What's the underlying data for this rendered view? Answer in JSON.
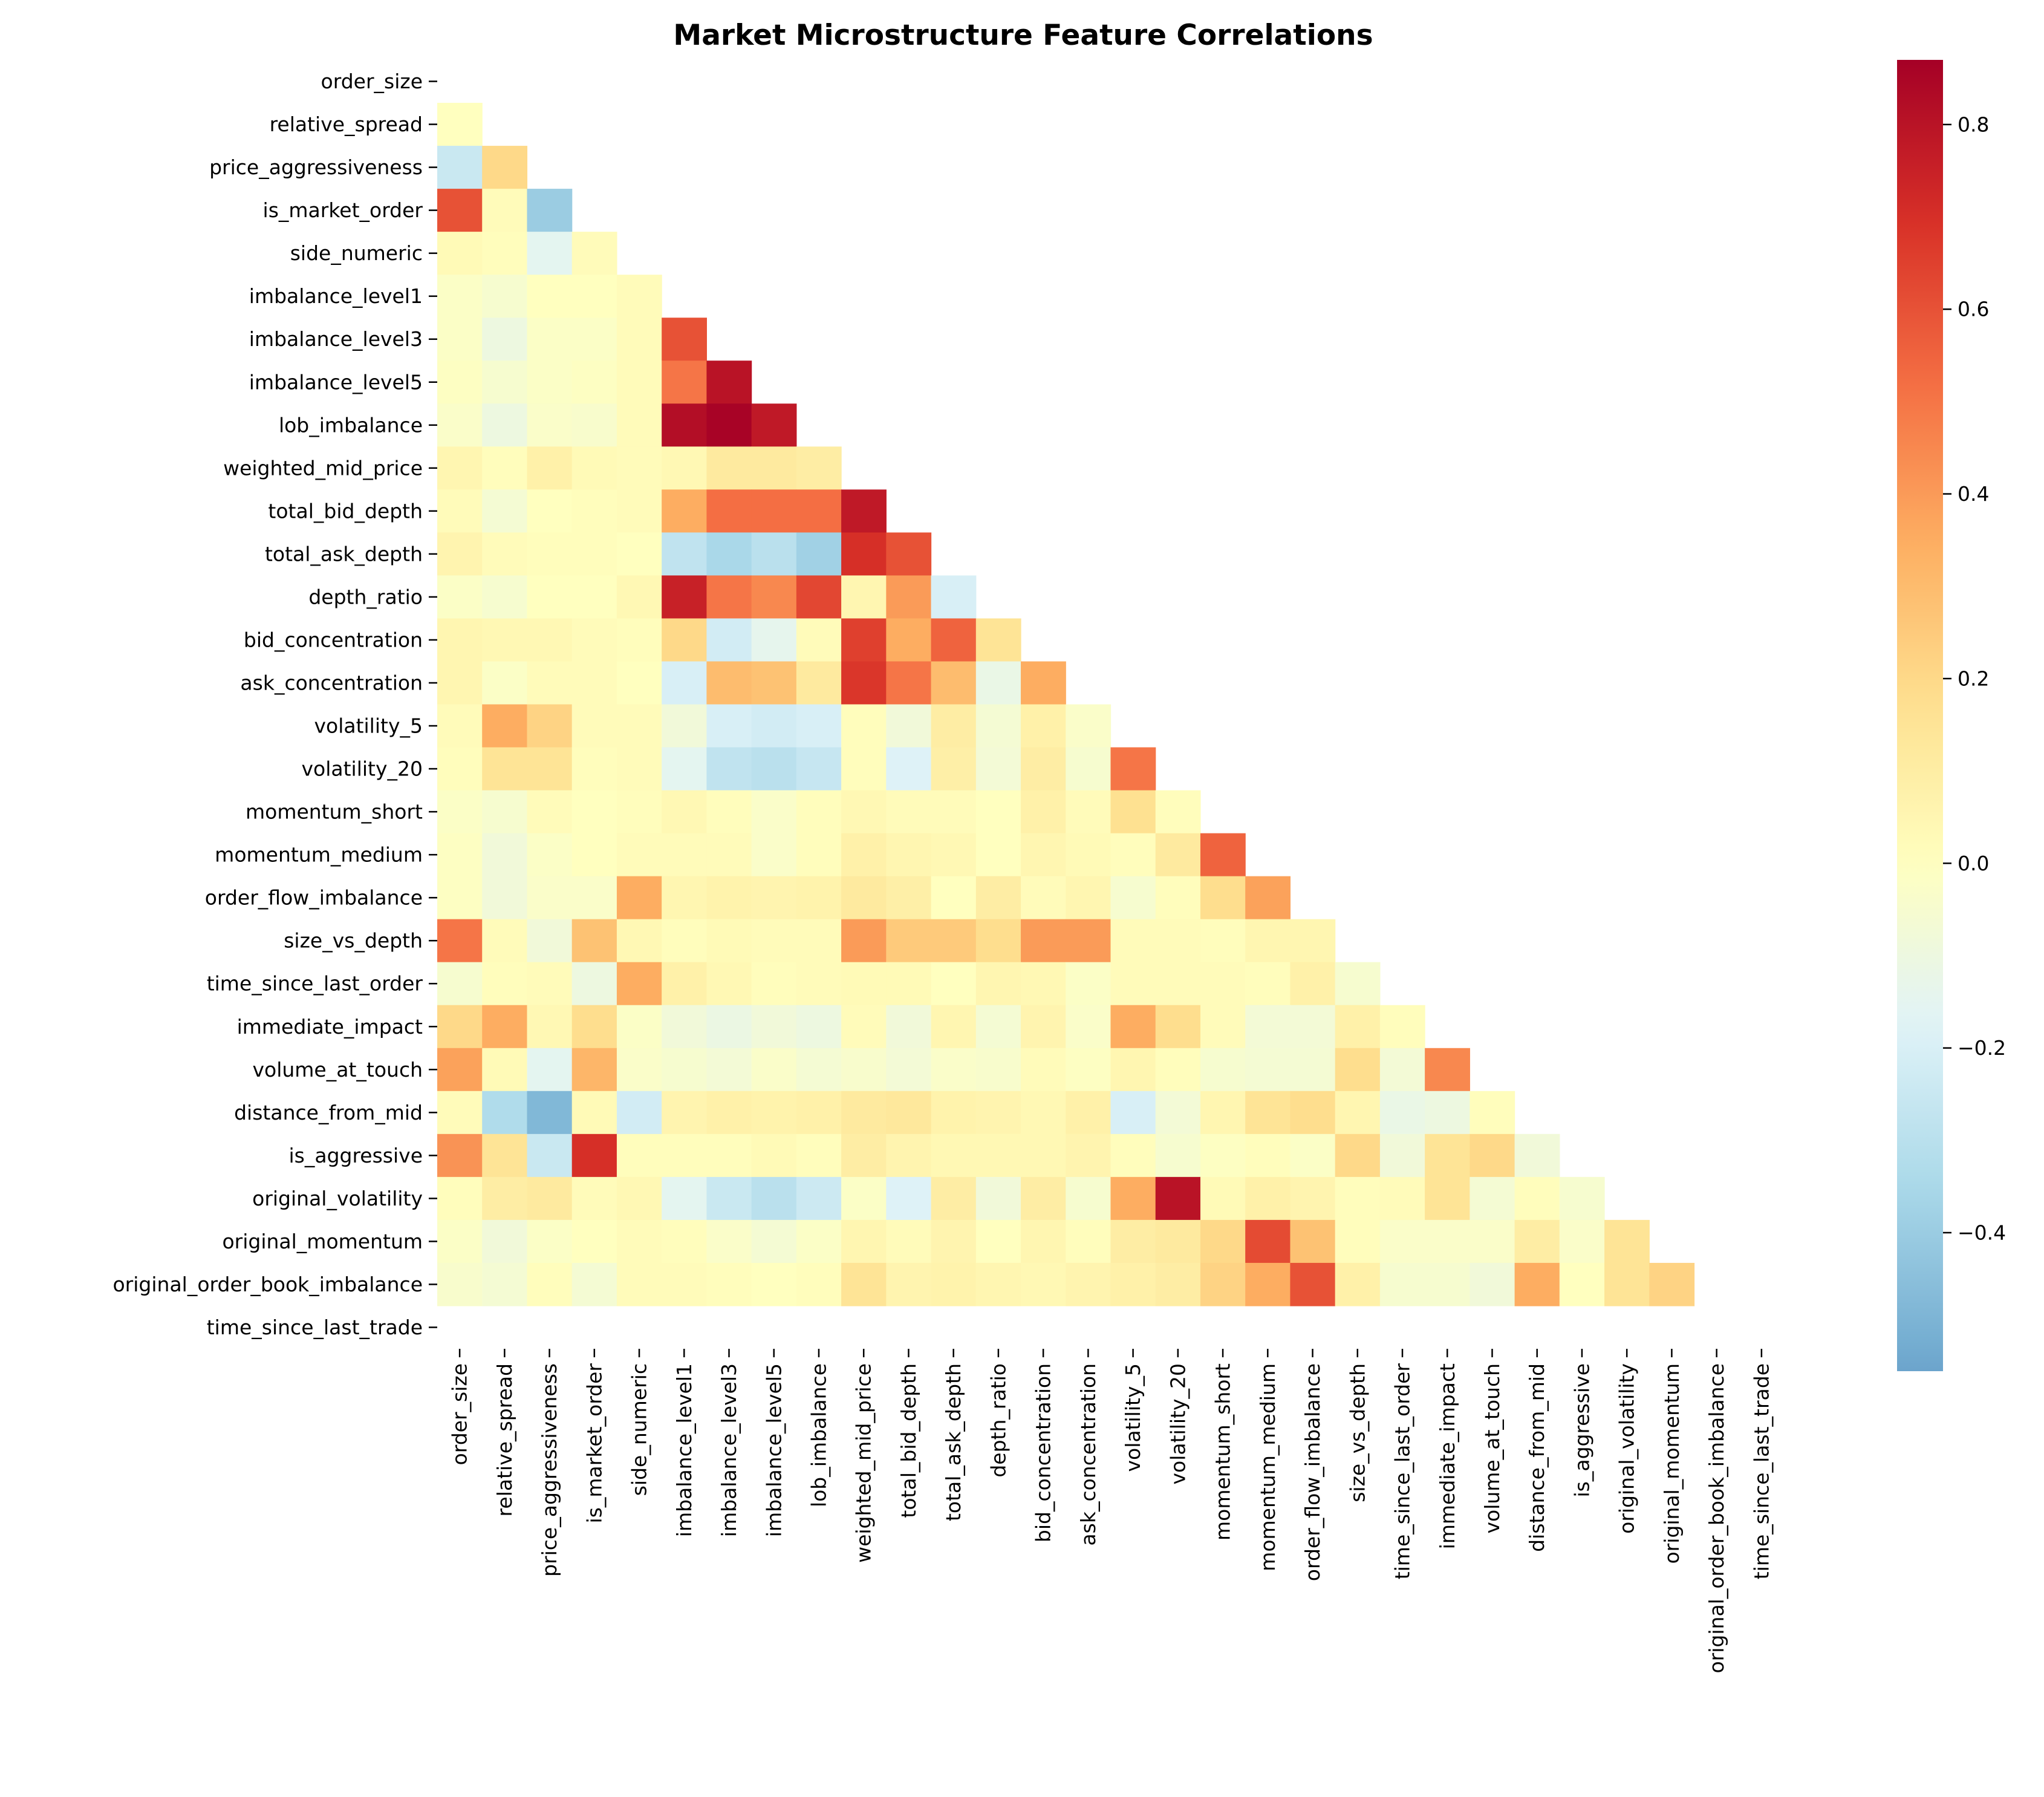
{
  "chart_data": {
    "type": "heatmap",
    "title": "Market Microstructure Feature Correlations",
    "mask": "upper-triangle-including-diagonal",
    "colormap": "RdYlBu_r",
    "features": [
      "order_size",
      "relative_spread",
      "price_aggressiveness",
      "is_market_order",
      "side_numeric",
      "imbalance_level1",
      "imbalance_level3",
      "imbalance_level5",
      "lob_imbalance",
      "weighted_mid_price",
      "total_bid_depth",
      "total_ask_depth",
      "depth_ratio",
      "bid_concentration",
      "ask_concentration",
      "volatility_5",
      "volatility_20",
      "momentum_short",
      "momentum_medium",
      "order_flow_imbalance",
      "size_vs_depth",
      "time_since_last_order",
      "immediate_impact",
      "volume_at_touch",
      "distance_from_mid",
      "is_aggressive",
      "original_volatility",
      "original_momentum",
      "original_order_book_imbalance",
      "time_since_last_trade"
    ],
    "lower_triangle_rows": [
      [],
      [
        0.0
      ],
      [
        -0.25,
        0.2
      ],
      [
        0.6,
        0.02,
        -0.4
      ],
      [
        0.03,
        0.01,
        -0.15,
        0.02
      ],
      [
        -0.02,
        -0.05,
        0.0,
        0.0,
        0.02
      ],
      [
        -0.02,
        -0.1,
        -0.02,
        -0.02,
        0.02,
        0.6
      ],
      [
        -0.01,
        -0.05,
        -0.02,
        -0.01,
        0.02,
        0.5,
        0.8
      ],
      [
        -0.03,
        -0.1,
        -0.03,
        -0.04,
        0.02,
        0.82,
        0.86,
        0.78
      ],
      [
        0.05,
        0.01,
        0.08,
        0.03,
        0.02,
        0.04,
        0.12,
        0.12,
        0.1
      ],
      [
        0.02,
        -0.06,
        0.0,
        0.01,
        0.02,
        0.35,
        0.52,
        0.52,
        0.52,
        0.78
      ],
      [
        0.06,
        0.02,
        0.01,
        0.01,
        0.0,
        -0.28,
        -0.35,
        -0.3,
        -0.38,
        0.7,
        0.6
      ],
      [
        -0.02,
        -0.05,
        0.0,
        0.0,
        0.04,
        0.75,
        0.5,
        0.45,
        0.63,
        0.05,
        0.4,
        -0.2
      ],
      [
        0.05,
        0.04,
        0.04,
        0.02,
        0.01,
        0.2,
        -0.22,
        -0.14,
        0.02,
        0.65,
        0.35,
        0.55,
        0.15
      ],
      [
        0.05,
        -0.02,
        0.02,
        0.02,
        0.0,
        -0.2,
        0.3,
        0.28,
        0.12,
        0.68,
        0.5,
        0.3,
        -0.12,
        0.35
      ],
      [
        0.02,
        0.35,
        0.22,
        0.02,
        0.02,
        -0.08,
        -0.2,
        -0.22,
        -0.2,
        0.01,
        -0.08,
        0.1,
        -0.06,
        0.08,
        -0.03
      ],
      [
        0.01,
        0.15,
        0.15,
        0.01,
        0.02,
        -0.15,
        -0.28,
        -0.3,
        -0.26,
        0.01,
        -0.18,
        0.09,
        -0.07,
        0.1,
        -0.05,
        0.5
      ],
      [
        -0.02,
        -0.05,
        0.02,
        0.0,
        0.01,
        0.04,
        0.01,
        -0.03,
        0.01,
        0.04,
        0.02,
        0.02,
        0.0,
        0.08,
        0.02,
        0.17,
        0.01
      ],
      [
        -0.01,
        -0.08,
        -0.02,
        0.0,
        0.02,
        0.02,
        0.02,
        -0.03,
        0.01,
        0.08,
        0.05,
        0.04,
        0.0,
        0.05,
        0.03,
        0.01,
        0.12,
        0.55
      ],
      [
        -0.01,
        -0.08,
        -0.03,
        -0.03,
        0.35,
        0.05,
        0.07,
        0.06,
        0.07,
        0.12,
        0.09,
        0.0,
        0.1,
        0.02,
        0.05,
        -0.05,
        0.01,
        0.18,
        0.38
      ],
      [
        0.5,
        0.02,
        -0.08,
        0.28,
        0.04,
        0.01,
        0.03,
        0.02,
        0.02,
        0.4,
        0.25,
        0.25,
        0.18,
        0.4,
        0.4,
        0.02,
        0.02,
        0.01,
        0.05,
        0.05
      ],
      [
        -0.05,
        0.01,
        0.02,
        -0.1,
        0.35,
        0.08,
        0.04,
        0.01,
        0.02,
        0.03,
        0.03,
        0.0,
        0.05,
        0.04,
        -0.02,
        0.02,
        0.02,
        0.02,
        0.01,
        0.08,
        -0.05
      ],
      [
        0.2,
        0.35,
        0.04,
        0.18,
        -0.02,
        -0.08,
        -0.11,
        -0.08,
        -0.1,
        0.02,
        -0.08,
        0.05,
        -0.06,
        0.06,
        -0.03,
        0.35,
        0.18,
        0.02,
        -0.07,
        -0.07,
        0.08,
        0.01
      ],
      [
        0.38,
        0.03,
        -0.15,
        0.32,
        -0.03,
        -0.05,
        -0.07,
        -0.03,
        -0.06,
        -0.04,
        -0.07,
        -0.03,
        -0.04,
        0.02,
        -0.01,
        0.05,
        0.01,
        -0.05,
        -0.06,
        -0.06,
        0.18,
        -0.07,
        0.45
      ],
      [
        0.02,
        -0.33,
        -0.48,
        0.03,
        -0.22,
        0.06,
        0.08,
        0.07,
        0.08,
        0.12,
        0.13,
        0.07,
        0.06,
        0.04,
        0.08,
        -0.2,
        -0.07,
        0.05,
        0.15,
        0.18,
        0.05,
        -0.12,
        -0.1,
        0.01
      ],
      [
        0.42,
        0.15,
        -0.25,
        0.7,
        0.01,
        0.01,
        0.01,
        0.03,
        0.01,
        0.1,
        0.06,
        0.04,
        0.04,
        0.04,
        0.06,
        0.01,
        -0.05,
        -0.01,
        0.01,
        -0.02,
        0.2,
        -0.08,
        0.15,
        0.2,
        -0.08
      ],
      [
        0.01,
        0.1,
        0.12,
        0.02,
        0.04,
        -0.15,
        -0.25,
        -0.3,
        -0.24,
        -0.02,
        -0.18,
        0.1,
        -0.08,
        0.1,
        -0.05,
        0.35,
        0.8,
        0.03,
        0.08,
        0.06,
        0.01,
        0.02,
        0.15,
        -0.06,
        0.01,
        -0.05
      ],
      [
        -0.02,
        -0.08,
        -0.02,
        0.0,
        0.02,
        0.01,
        -0.03,
        -0.06,
        -0.02,
        0.05,
        0.02,
        0.06,
        0.0,
        0.05,
        0.01,
        0.1,
        0.12,
        0.2,
        0.62,
        0.28,
        0.01,
        -0.03,
        -0.03,
        -0.03,
        0.1,
        -0.03,
        0.15
      ],
      [
        -0.04,
        -0.06,
        0.01,
        -0.06,
        0.02,
        0.02,
        0.01,
        0.0,
        0.01,
        0.15,
        0.06,
        0.07,
        0.05,
        0.04,
        0.06,
        0.08,
        0.1,
        0.22,
        0.35,
        0.6,
        0.08,
        -0.05,
        -0.05,
        -0.08,
        0.35,
        0.0,
        0.15,
        0.22
      ],
      []
    ],
    "colorbar": {
      "range": [
        -0.55,
        0.87
      ],
      "ticks": [
        -0.4,
        -0.2,
        0.0,
        0.2,
        0.4,
        0.6,
        0.8
      ],
      "tick_labels": [
        "−0.4",
        "−0.2",
        "0.0",
        "0.2",
        "0.4",
        "0.6",
        "0.8"
      ]
    }
  }
}
